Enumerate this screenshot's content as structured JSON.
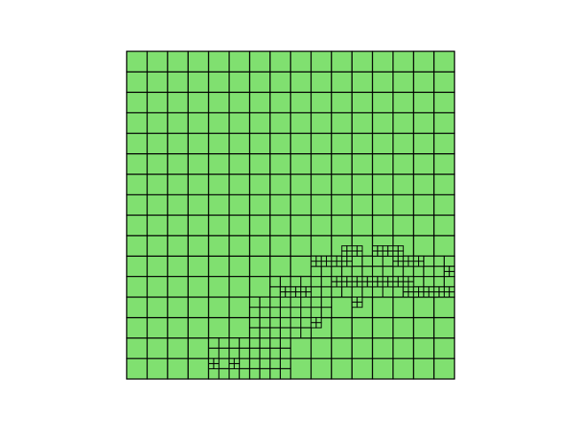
{
  "mesh": {
    "fill_color": "#80e070",
    "line_color": "#000000",
    "base_grid": {
      "cols": 16,
      "rows": 16
    },
    "refined_level_1": [
      [
        4,
        0
      ],
      [
        5,
        0
      ],
      [
        6,
        0
      ],
      [
        7,
        0
      ],
      [
        4,
        1
      ],
      [
        5,
        1
      ],
      [
        6,
        1
      ],
      [
        7,
        1
      ],
      [
        6,
        2
      ],
      [
        7,
        2
      ],
      [
        8,
        2
      ],
      [
        6,
        3
      ],
      [
        7,
        3
      ],
      [
        8,
        3
      ],
      [
        9,
        3
      ],
      [
        7,
        4
      ],
      [
        8,
        4
      ],
      [
        9,
        4
      ],
      [
        10,
        4
      ],
      [
        11,
        4
      ],
      [
        12,
        4
      ],
      [
        13,
        4
      ],
      [
        14,
        4
      ],
      [
        15,
        4
      ],
      [
        9,
        5
      ],
      [
        10,
        5
      ],
      [
        11,
        5
      ],
      [
        12,
        5
      ],
      [
        13,
        5
      ],
      [
        14,
        5
      ],
      [
        15,
        5
      ]
    ],
    "refined_level_2": [
      [
        8,
        1
      ],
      [
        10,
        1
      ],
      [
        18,
        5
      ],
      [
        22,
        7
      ],
      [
        15,
        8
      ],
      [
        16,
        8
      ],
      [
        17,
        8
      ],
      [
        27,
        8
      ],
      [
        28,
        8
      ],
      [
        29,
        8
      ],
      [
        30,
        8
      ],
      [
        31,
        8
      ],
      [
        20,
        9
      ],
      [
        21,
        9
      ],
      [
        22,
        9
      ],
      [
        23,
        9
      ],
      [
        24,
        9
      ],
      [
        25,
        9
      ],
      [
        26,
        9
      ],
      [
        27,
        9
      ],
      [
        31,
        10
      ],
      [
        18,
        11
      ],
      [
        19,
        11
      ],
      [
        20,
        11
      ],
      [
        21,
        11
      ],
      [
        26,
        11
      ],
      [
        27,
        11
      ],
      [
        28,
        11
      ],
      [
        21,
        12
      ],
      [
        22,
        12
      ],
      [
        24,
        12
      ],
      [
        25,
        12
      ],
      [
        26,
        12
      ]
    ]
  }
}
